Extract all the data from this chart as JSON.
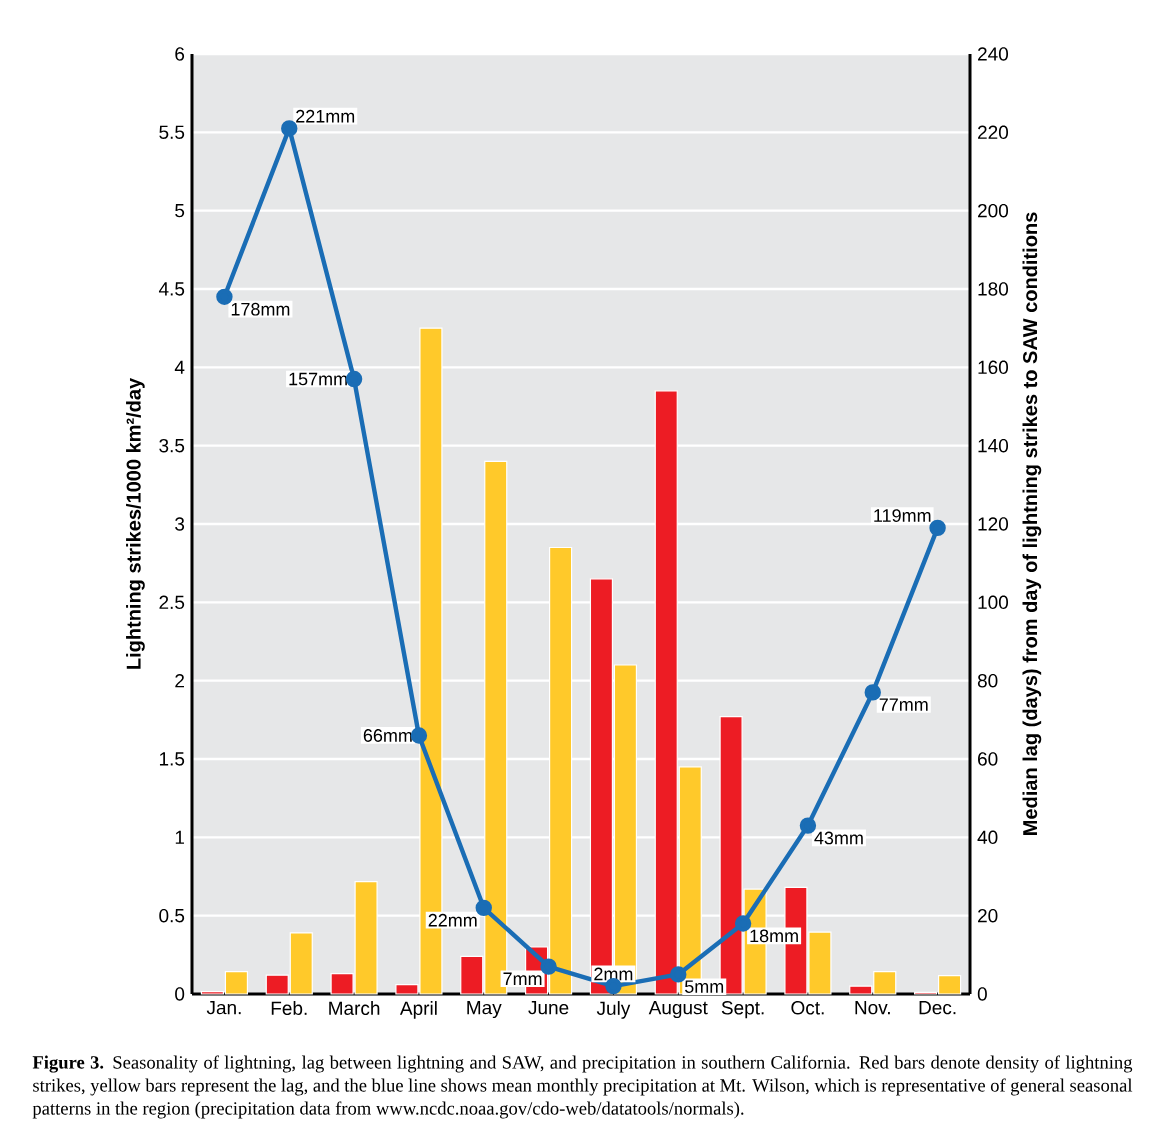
{
  "chart_data": {
    "type": "bar",
    "ylabel": "Lightning strikes/1000 km²/day",
    "y2label": "Median lag (days) from day of lightning strikes to SAW conditions",
    "categories": [
      "Jan.",
      "Feb.",
      "March",
      "April",
      "May",
      "June",
      "July",
      "August",
      "Sept.",
      "Oct.",
      "Nov.",
      "Dec."
    ],
    "ylim": [
      0,
      6
    ],
    "yticks": [
      0,
      0.5,
      1,
      1.5,
      2,
      2.5,
      3,
      3.5,
      4,
      4.5,
      5,
      5.5,
      6
    ],
    "y2lim": [
      0,
      240
    ],
    "y2ticks": [
      0,
      20,
      40,
      60,
      80,
      100,
      120,
      140,
      160,
      180,
      200,
      220,
      240
    ],
    "grid": "y",
    "marker": "circle",
    "series": [
      {
        "color": "#ed1c24",
        "values": [
          0.015,
          0.12,
          0.13,
          0.06,
          0.24,
          0.3,
          2.65,
          3.85,
          1.77,
          0.68,
          0.05,
          0.01
        ]
      },
      {
        "color": "#ffc92a",
        "axis": "y2",
        "values": [
          5.7,
          15.6,
          28.7,
          170,
          136,
          114,
          84,
          58,
          26.8,
          15.8,
          5.7,
          4.7
        ]
      },
      {
        "type": "line",
        "axis": "y2",
        "color": "#1a6db5",
        "values": [
          178,
          221,
          157,
          66,
          22,
          7,
          2,
          5,
          18,
          43,
          77,
          119
        ],
        "value_labels": [
          "178mm",
          "221mm",
          "157mm",
          "66mm",
          "22mm",
          "7mm",
          "2mm",
          "5mm",
          "18mm",
          "43mm",
          "77mm",
          "119mm"
        ]
      }
    ],
    "annotations": [
      "**Figure 3.** Seasonality of lightning, lag between lightning and SAW, and precipitation in southern California. Red bars denote density of lightning strikes, yellow bars represent the lag, and the blue line shows mean monthly precipitation at Mt. Wilson, which is representative of general seasonal patterns in the region (precipitation data from www.ncdc.noaa.gov/cdo-web/datatools/normals)."
    ]
  }
}
